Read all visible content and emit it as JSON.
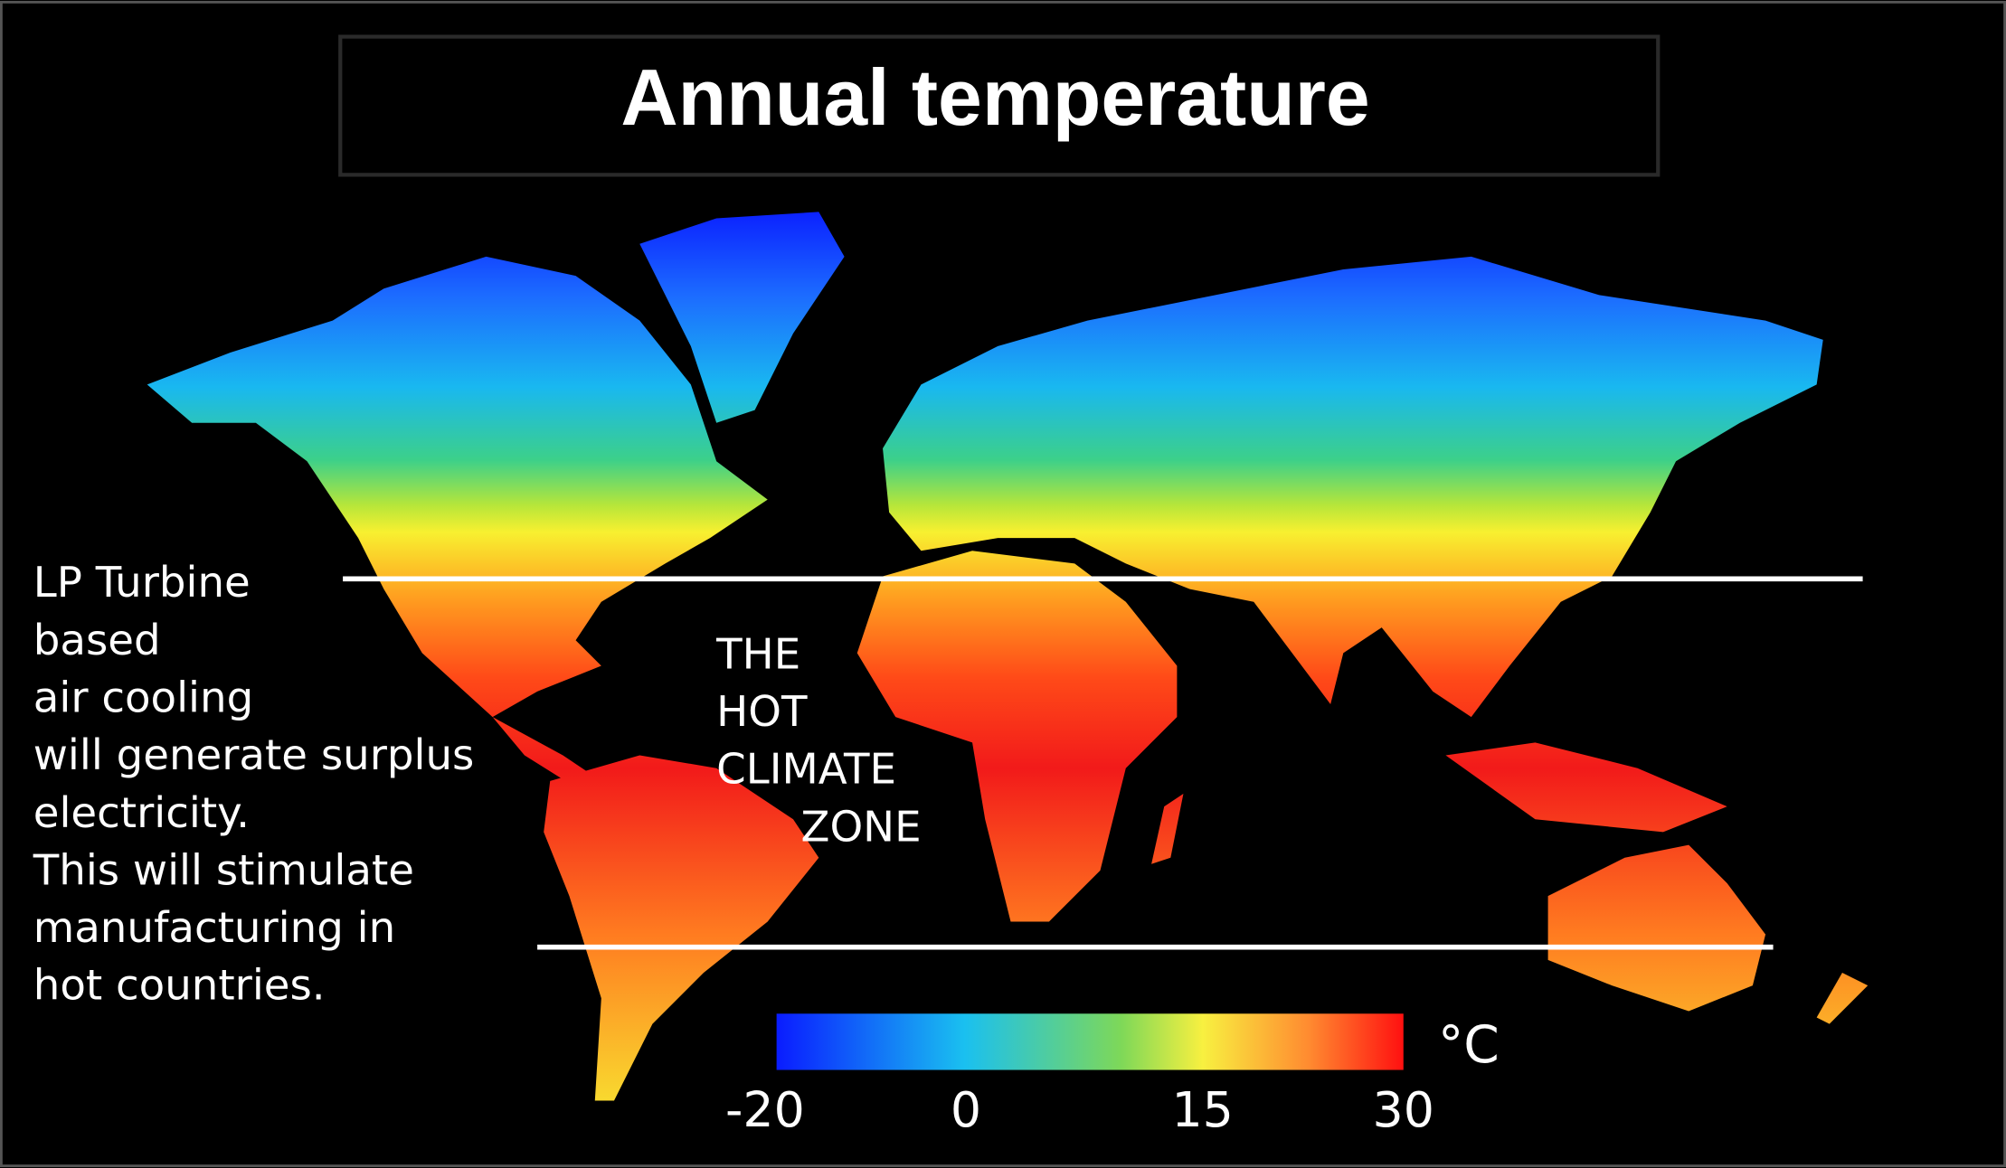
{
  "title": "Annual temperature",
  "annotation": [
    "LP Turbine",
    "based",
    "air cooling",
    "will generate surplus",
    "electricity.",
    "This will stimulate",
    "manufacturing in",
    "hot countries."
  ],
  "zone_label": [
    "THE",
    "HOT",
    "CLIMATE",
    "ZONE"
  ],
  "colorbar": {
    "unit": "°C",
    "labels": [
      "-20",
      "0",
      "15",
      "30"
    ]
  }
}
